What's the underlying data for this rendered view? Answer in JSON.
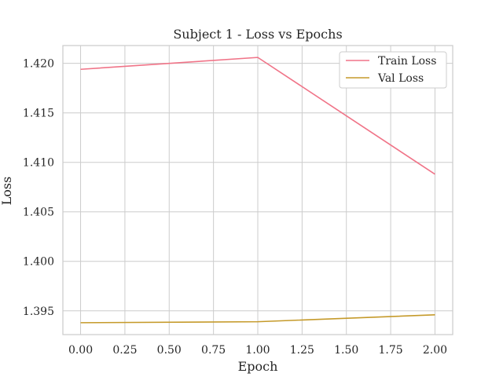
{
  "chart_data": {
    "type": "line",
    "title": "Subject 1 - Loss vs Epochs",
    "xlabel": "Epoch",
    "ylabel": "Loss",
    "x": [
      0,
      1,
      2
    ],
    "xlim": [
      -0.1,
      2.1
    ],
    "ylim": [
      1.3926,
      1.4218
    ],
    "xticks": [
      0.0,
      0.25,
      0.5,
      0.75,
      1.0,
      1.25,
      1.5,
      1.75,
      2.0
    ],
    "xtick_labels": [
      "0.00",
      "0.25",
      "0.50",
      "0.75",
      "1.00",
      "1.25",
      "1.50",
      "1.75",
      "2.00"
    ],
    "yticks": [
      1.395,
      1.4,
      1.405,
      1.41,
      1.415,
      1.42
    ],
    "ytick_labels": [
      "1.395",
      "1.400",
      "1.405",
      "1.410",
      "1.415",
      "1.420"
    ],
    "grid": true,
    "legend_position": "top-right",
    "series": [
      {
        "name": "Train Loss",
        "color": "#f07488",
        "values": [
          1.4194,
          1.4206,
          1.4088
        ]
      },
      {
        "name": "Val Loss",
        "color": "#c59a2a",
        "values": [
          1.3938,
          1.3939,
          1.3946
        ]
      }
    ]
  }
}
